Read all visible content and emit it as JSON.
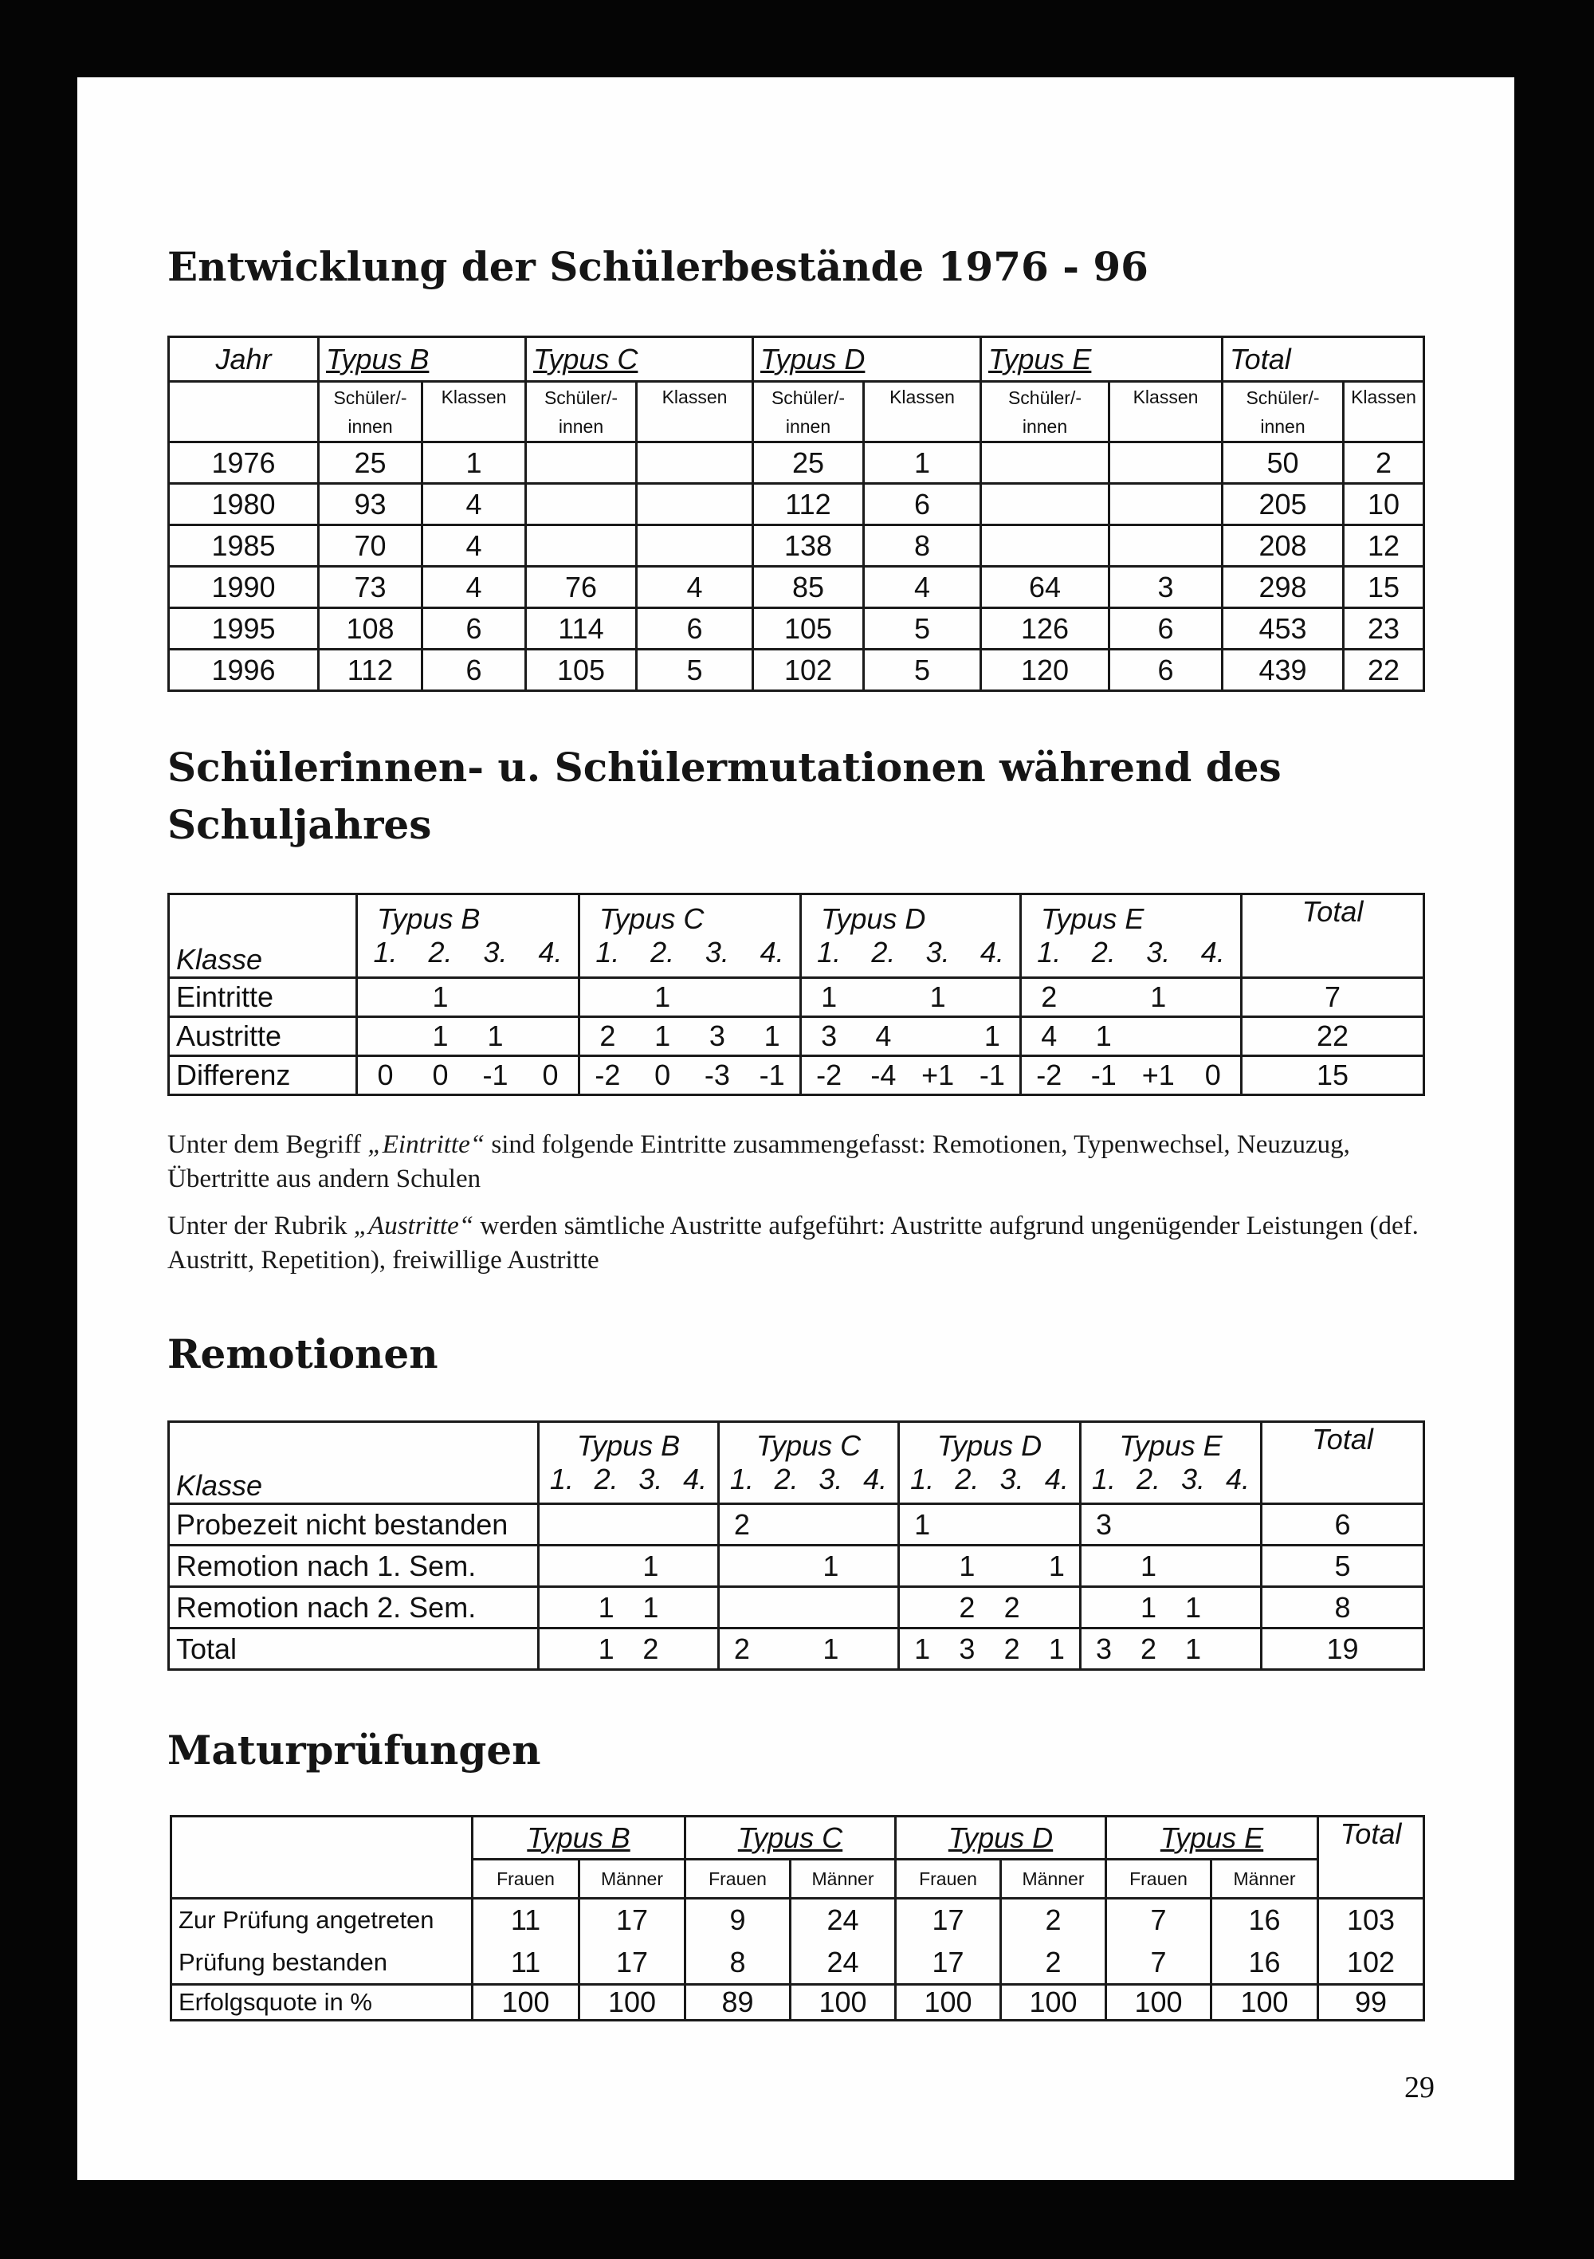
{
  "page_number": "29",
  "section1": {
    "title": "Entwicklung der Schülerbestände 1976 - 96",
    "year_header": "Jahr",
    "types": [
      "Typus B",
      "Typus C",
      "Typus D",
      "Typus E",
      "Total"
    ],
    "sub_students": "Schüler/-innen",
    "sub_students_l1": "Schüler/-",
    "sub_students_l2": "innen",
    "sub_classes": "Klassen",
    "rows": [
      [
        "1976",
        "25",
        "1",
        "",
        "",
        "25",
        "1",
        "",
        "",
        "50",
        "2"
      ],
      [
        "1980",
        "93",
        "4",
        "",
        "",
        "112",
        "6",
        "",
        "",
        "205",
        "10"
      ],
      [
        "1985",
        "70",
        "4",
        "",
        "",
        "138",
        "8",
        "",
        "",
        "208",
        "12"
      ],
      [
        "1990",
        "73",
        "4",
        "76",
        "4",
        "85",
        "4",
        "64",
        "3",
        "298",
        "15"
      ],
      [
        "1995",
        "108",
        "6",
        "114",
        "6",
        "105",
        "5",
        "126",
        "6",
        "453",
        "23"
      ],
      [
        "1996",
        "112",
        "6",
        "105",
        "5",
        "102",
        "5",
        "120",
        "6",
        "439",
        "22"
      ]
    ]
  },
  "section2": {
    "title_line1": "Schülerinnen- u. Schülermutationen während des",
    "title_line2": "Schuljahres",
    "row_header": "Klasse",
    "types": [
      "Typus B",
      "Typus C",
      "Typus D",
      "Typus E"
    ],
    "total_header": "Total",
    "class_labels": [
      "1.",
      "2.",
      "3.",
      "4."
    ],
    "rows": [
      {
        "label": "Eintritte",
        "cells": [
          [
            "",
            "1",
            "",
            ""
          ],
          [
            "",
            "1",
            "",
            ""
          ],
          [
            "1",
            "",
            "1",
            ""
          ],
          [
            "2",
            "",
            "1",
            ""
          ]
        ],
        "total": "7"
      },
      {
        "label": "Austritte",
        "cells": [
          [
            "",
            "1",
            "1",
            ""
          ],
          [
            "2",
            "1",
            "3",
            "1"
          ],
          [
            "3",
            "4",
            "",
            "1"
          ],
          [
            "4",
            "1",
            "",
            ""
          ]
        ],
        "total": "22"
      },
      {
        "label": "Differenz",
        "cells": [
          [
            "0",
            "0",
            "-1",
            "0"
          ],
          [
            "-2",
            "0",
            "-3",
            "-1"
          ],
          [
            "-2",
            "-4",
            "+1",
            "-1"
          ],
          [
            "-2",
            "-1",
            "+1",
            "0"
          ]
        ],
        "total": "15"
      }
    ],
    "note1_prefix": "Unter dem Begriff ",
    "note1_term": "„Eintritte“",
    "note1_rest": " sind folgende Eintritte zusammengefasst: Remotionen, Typenwechsel, Neuzuzug, Übertritte aus andern Schulen",
    "note2_prefix": "Unter der Rubrik ",
    "note2_term": "„Austritte“",
    "note2_rest": " werden sämtliche Austritte aufgeführt: Austritte aufgrund ungenügender Leistungen (def. Austritt, Repetition), freiwillige Austritte"
  },
  "section3": {
    "title": "Remotionen",
    "row_header": "Klasse",
    "types": [
      "Typus B",
      "Typus C",
      "Typus D",
      "Typus E"
    ],
    "total_header": "Total",
    "class_labels": [
      "1.",
      "2.",
      "3.",
      "4."
    ],
    "rows": [
      {
        "label": "Probezeit nicht bestanden",
        "cells": [
          [
            "",
            "",
            "",
            ""
          ],
          [
            "2",
            "",
            "",
            ""
          ],
          [
            "1",
            "",
            "",
            ""
          ],
          [
            "3",
            "",
            "",
            ""
          ]
        ],
        "total": "6"
      },
      {
        "label": "Remotion nach 1. Sem.",
        "cells": [
          [
            "",
            "",
            "1",
            ""
          ],
          [
            "",
            "",
            "1",
            ""
          ],
          [
            "",
            "1",
            "",
            "1"
          ],
          [
            "",
            "1",
            "",
            ""
          ]
        ],
        "total": "5"
      },
      {
        "label": "Remotion nach 2. Sem.",
        "cells": [
          [
            "",
            "1",
            "1",
            ""
          ],
          [
            "",
            "",
            "",
            ""
          ],
          [
            "",
            "2",
            "2",
            ""
          ],
          [
            "",
            "1",
            "1",
            ""
          ]
        ],
        "total": "8"
      },
      {
        "label": "Total",
        "cells": [
          [
            "",
            "1",
            "2",
            ""
          ],
          [
            "2",
            "",
            "1",
            ""
          ],
          [
            "1",
            "3",
            "2",
            "1"
          ],
          [
            "3",
            "2",
            "1",
            ""
          ]
        ],
        "total": "19"
      }
    ]
  },
  "section4": {
    "title": "Maturprüfungen",
    "types": [
      "Typus B",
      "Typus C",
      "Typus D",
      "Typus E"
    ],
    "total_header": "Total",
    "women": "Frauen",
    "men": "Männer",
    "rows": [
      {
        "label": "Zur Prüfung angetreten",
        "values": [
          "11",
          "17",
          "9",
          "24",
          "17",
          "2",
          "7",
          "16",
          "103"
        ]
      },
      {
        "label": "Prüfung bestanden",
        "values": [
          "11",
          "17",
          "8",
          "24",
          "17",
          "2",
          "7",
          "16",
          "102"
        ]
      },
      {
        "label": "Erfolgsquote in %",
        "values": [
          "100",
          "100",
          "89",
          "100",
          "100",
          "100",
          "100",
          "100",
          "99"
        ]
      }
    ]
  }
}
